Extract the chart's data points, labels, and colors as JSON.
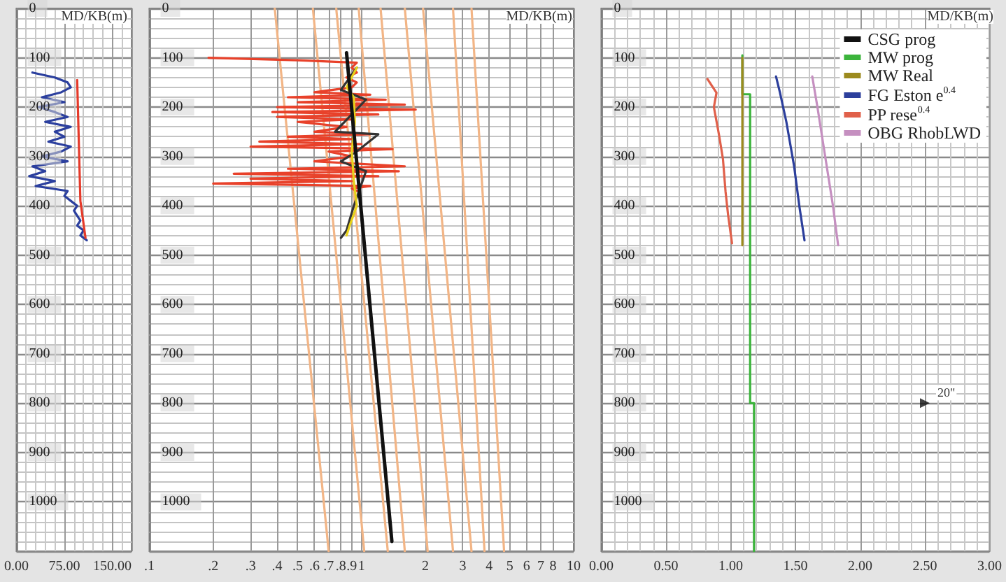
{
  "chart_data": [
    {
      "type": "line",
      "ylabel": "MD/KB(m)",
      "xlim": [
        0,
        180
      ],
      "xticks": [
        {
          "value": 0,
          "label": "0.00"
        },
        {
          "value": 75,
          "label": "75.00"
        },
        {
          "value": 150,
          "label": "150.00"
        }
      ],
      "ylim": [
        1100,
        0
      ],
      "yticks": [
        0,
        100,
        200,
        300,
        400,
        500,
        600,
        700,
        800,
        900,
        1000
      ],
      "grid": true,
      "marker": "none",
      "line_style": "solid",
      "series": [
        {
          "color": "#2b3f9e",
          "x": [
            25,
            60,
            80,
            85,
            70,
            40,
            75,
            35,
            60,
            80,
            45,
            85,
            60,
            75,
            50,
            85,
            70,
            40,
            80,
            25,
            45,
            20,
            60,
            30,
            80,
            75,
            85,
            95,
            90,
            95,
            100,
            95,
            105,
            100,
            110
          ],
          "values": [
            130,
            140,
            150,
            160,
            170,
            180,
            190,
            200,
            210,
            220,
            230,
            240,
            250,
            260,
            270,
            280,
            290,
            300,
            310,
            320,
            330,
            340,
            350,
            360,
            370,
            380,
            390,
            400,
            410,
            420,
            430,
            440,
            450,
            460,
            470
          ]
        },
        {
          "color": "#e53a2a",
          "x": [
            95,
            100,
            108
          ],
          "values": [
            145,
            390,
            465
          ]
        }
      ]
    },
    {
      "type": "line",
      "ylabel": "MD/KB(m)",
      "log": "x",
      "xlim": [
        0.1,
        10
      ],
      "xticks": [
        {
          "value": 0.1,
          "label": ".1"
        },
        {
          "value": 0.2,
          "label": ".2"
        },
        {
          "value": 0.3,
          "label": ".3"
        },
        {
          "value": 0.4,
          "label": ".4"
        },
        {
          "value": 0.5,
          "label": ".5"
        },
        {
          "value": 0.6,
          "label": ".6"
        },
        {
          "value": 0.7,
          "label": ".7"
        },
        {
          "value": 0.8,
          "label": ".8"
        },
        {
          "value": 0.9,
          "label": ".9"
        },
        1,
        2,
        3,
        4,
        5,
        6,
        7,
        8,
        10
      ],
      "ylim": [
        1100,
        0
      ],
      "yticks": [
        0,
        100,
        200,
        300,
        400,
        500,
        600,
        700,
        800,
        900,
        1000
      ],
      "grid": true,
      "marker": "none",
      "line_style": "solid",
      "series": [
        {
          "color": "#f2b586",
          "x": [
            0.39,
            0.7
          ],
          "values": [
            0,
            1100
          ]
        },
        {
          "color": "#f2b586",
          "x": [
            0.59,
            1.03
          ],
          "values": [
            0,
            1100
          ]
        },
        {
          "color": "#f2b586",
          "x": [
            0.76,
            1.33
          ],
          "values": [
            0,
            1100
          ]
        },
        {
          "color": "#f2b586",
          "x": [
            0.97,
            1.6
          ],
          "values": [
            0,
            1100
          ]
        },
        {
          "color": "#f2b586",
          "x": [
            1.23,
            2.05
          ],
          "values": [
            0,
            1100
          ]
        },
        {
          "color": "#f2b586",
          "x": [
            1.6,
            2.7
          ],
          "values": [
            0,
            1100
          ]
        },
        {
          "color": "#f2b586",
          "x": [
            1.95,
            3.3
          ],
          "values": [
            0,
            1100
          ]
        },
        {
          "color": "#f2b586",
          "x": [
            2.7,
            3.8
          ],
          "values": [
            0,
            1100
          ]
        },
        {
          "color": "#f2b586",
          "x": [
            3.3,
            4.7
          ],
          "values": [
            0,
            1100
          ]
        },
        {
          "color": "#e8412a",
          "x": [
            0.19,
            0.5,
            0.95,
            0.9,
            0.95,
            0.85,
            0.95,
            0.9,
            0.6,
            1.1,
            0.45,
            1.3,
            0.5,
            1.6,
            0.4,
            1.8,
            0.38,
            1.2,
            0.4,
            0.9,
            0.5,
            0.85,
            0.6,
            1.1,
            0.45,
            0.9,
            0.33,
            1.0,
            0.3,
            1.4,
            0.7,
            0.9,
            0.6,
            1.6,
            0.45,
            1.5,
            0.25,
            1.2,
            0.3,
            0.9,
            0.2,
            1.1,
            0.9,
            0.95
          ],
          "values": [
            100,
            105,
            110,
            120,
            130,
            140,
            150,
            160,
            170,
            175,
            180,
            185,
            190,
            195,
            200,
            205,
            210,
            215,
            220,
            225,
            230,
            240,
            250,
            255,
            260,
            265,
            270,
            275,
            280,
            285,
            290,
            300,
            310,
            320,
            325,
            330,
            335,
            340,
            345,
            350,
            355,
            360,
            365,
            370
          ]
        },
        {
          "color": "#333333",
          "x": [
            0.95,
            0.8,
            1.05,
            0.75,
            1.2,
            0.95,
            0.8,
            1.05,
            0.92,
            0.85,
            0.8
          ],
          "values": [
            120,
            165,
            185,
            250,
            255,
            290,
            310,
            330,
            400,
            450,
            465
          ]
        },
        {
          "color": "#e8d21a",
          "x": [
            0.95,
            0.85,
            0.92,
            0.93,
            0.9,
            0.92,
            0.95,
            0.88,
            0.85
          ],
          "values": [
            120,
            160,
            180,
            230,
            290,
            350,
            400,
            440,
            460
          ]
        },
        {
          "name": "CSG prog",
          "color": "#111111",
          "x": [
            0.85,
            1.39
          ],
          "values": [
            90,
            1080
          ]
        }
      ]
    },
    {
      "type": "line",
      "ylabel": "MD/KB(m)",
      "xlim": [
        0,
        3
      ],
      "xticks": [
        {
          "value": 0,
          "label": "0.00"
        },
        {
          "value": 0.5,
          "label": "0.50"
        },
        {
          "value": 1,
          "label": "1.00"
        },
        {
          "value": 1.5,
          "label": "1.50"
        },
        {
          "value": 2,
          "label": "2.00"
        },
        {
          "value": 2.5,
          "label": "2.50"
        },
        {
          "value": 3,
          "label": "3.00"
        }
      ],
      "ylim": [
        1100,
        0
      ],
      "yticks": [
        0,
        100,
        200,
        300,
        400,
        500,
        600,
        700,
        800,
        900,
        1000
      ],
      "grid": true,
      "marker": "none",
      "line_style": "solid",
      "legend": "top right",
      "annotations": [
        {
          "text": "20\"",
          "x": 2.5,
          "y": 800
        }
      ],
      "series": [
        {
          "type": "scatter",
          "marker": "triangle",
          "color": "#111111",
          "x": [
            2.5
          ],
          "values": [
            800
          ]
        },
        {
          "name": "MW prog",
          "color": "#3cb43c",
          "x": [
            1.09,
            1.09,
            1.15,
            1.15,
            1.18,
            1.18
          ],
          "values": [
            95,
            174,
            174,
            800,
            800,
            1100
          ]
        },
        {
          "name": "MW Real",
          "color": "#9c8a1e",
          "x": [
            1.09,
            1.09
          ],
          "values": [
            100,
            480
          ]
        },
        {
          "name": "FG Eston e$^{0.4}$",
          "color": "#2c3f9c",
          "x": [
            1.35,
            1.38,
            1.43,
            1.49,
            1.53,
            1.57
          ],
          "values": [
            138,
            170,
            230,
            320,
            400,
            470
          ]
        },
        {
          "name": "PP rese$^{0.4}$",
          "color": "#e0604a",
          "x": [
            0.82,
            0.89,
            0.87,
            0.91,
            0.94,
            0.96,
            0.98,
            1.01
          ],
          "values": [
            143,
            171,
            200,
            257,
            305,
            371,
            419,
            476
          ]
        },
        {
          "name": "OBG RhobLWD",
          "color": "#c58fc0",
          "x": [
            1.63,
            1.67,
            1.73,
            1.79,
            1.83
          ],
          "values": [
            138,
            200,
            300,
            400,
            480
          ]
        }
      ]
    }
  ]
}
